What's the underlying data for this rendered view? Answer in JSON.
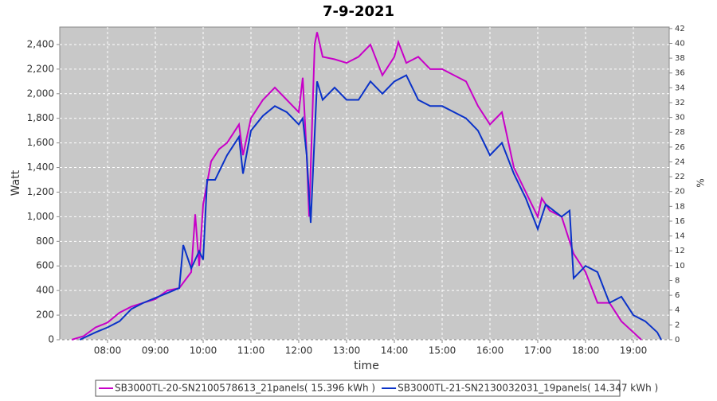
{
  "chart_data": {
    "type": "line",
    "title": "7-9-2021",
    "x_label": "time",
    "y_label": "Watt",
    "y2_label": "%",
    "xlim": [
      "07:00",
      "19:45"
    ],
    "xticks": [
      "08:00",
      "09:00",
      "10:00",
      "11:00",
      "12:00",
      "13:00",
      "14:00",
      "15:00",
      "16:00",
      "17:00",
      "18:00",
      "19:00"
    ],
    "ylim": [
      0,
      2542
    ],
    "yticks": [
      0,
      200,
      400,
      600,
      800,
      {
        "value": 1000,
        "label": "1,000"
      },
      {
        "value": 1200,
        "label": "1,200"
      },
      {
        "value": 1400,
        "label": "1,400"
      },
      {
        "value": 1600,
        "label": "1,600"
      },
      {
        "value": 1800,
        "label": "1,800"
      },
      {
        "value": 2000,
        "label": "2,000"
      },
      {
        "value": 2200,
        "label": "2,200"
      },
      {
        "value": 2400,
        "label": "2,400"
      }
    ],
    "y2lim": [
      0,
      42.2
    ],
    "y2ticks": [
      0,
      2,
      4,
      6,
      8,
      10,
      12,
      14,
      16,
      18,
      20,
      22,
      24,
      26,
      28,
      30,
      32,
      34,
      36,
      38,
      40,
      42
    ],
    "grid": true,
    "legend": "bottom",
    "series": [
      {
        "name": "SB3000TL-20-SN2100578613_21panels( 15.396 kWh )",
        "color": "#c800c8",
        "x": [
          "07:15",
          "07:30",
          "07:45",
          "08:00",
          "08:15",
          "08:30",
          "08:45",
          "09:00",
          "09:15",
          "09:30",
          "09:45",
          "09:50",
          "09:55",
          "10:00",
          "10:10",
          "10:20",
          "10:30",
          "10:40",
          "10:45",
          "10:50",
          "11:00",
          "11:15",
          "11:30",
          "11:45",
          "12:00",
          "12:05",
          "12:10",
          "12:13",
          "12:20",
          "12:23",
          "12:30",
          "12:45",
          "13:00",
          "13:15",
          "13:30",
          "13:45",
          "14:00",
          "14:05",
          "14:15",
          "14:30",
          "14:45",
          "15:00",
          "15:15",
          "15:30",
          "15:45",
          "16:00",
          "16:15",
          "16:30",
          "16:45",
          "17:00",
          "17:05",
          "17:15",
          "17:30",
          "17:45",
          "18:00",
          "18:15",
          "18:30",
          "18:45",
          "19:00",
          "19:10"
        ],
        "values": [
          0,
          30,
          100,
          140,
          220,
          270,
          300,
          330,
          400,
          420,
          550,
          1020,
          600,
          1100,
          1450,
          1550,
          1600,
          1700,
          1750,
          1500,
          1800,
          1950,
          2050,
          1950,
          1850,
          2130,
          1500,
          1000,
          2400,
          2500,
          2300,
          2280,
          2250,
          2300,
          2400,
          2150,
          2300,
          2420,
          2250,
          2300,
          2200,
          2200,
          2150,
          2100,
          1900,
          1750,
          1850,
          1400,
          1200,
          1000,
          1150,
          1050,
          1000,
          700,
          550,
          300,
          300,
          150,
          60,
          0
        ]
      },
      {
        "name": "SB3000TL-21-SN2130032031_19panels( 14.347 kWh )",
        "color": "#0a32c8",
        "x": [
          "07:25",
          "07:45",
          "08:00",
          "08:15",
          "08:30",
          "08:45",
          "09:00",
          "09:15",
          "09:30",
          "09:35",
          "09:45",
          "09:55",
          "10:00",
          "10:05",
          "10:15",
          "10:30",
          "10:45",
          "10:50",
          "11:00",
          "11:15",
          "11:30",
          "11:45",
          "12:00",
          "12:05",
          "12:10",
          "12:15",
          "12:23",
          "12:30",
          "12:45",
          "13:00",
          "13:15",
          "13:30",
          "13:45",
          "14:00",
          "14:15",
          "14:30",
          "14:45",
          "15:00",
          "15:15",
          "15:30",
          "15:45",
          "16:00",
          "16:15",
          "16:30",
          "16:45",
          "17:00",
          "17:10",
          "17:30",
          "17:40",
          "17:45",
          "18:00",
          "18:15",
          "18:30",
          "18:45",
          "19:00",
          "19:15",
          "19:30",
          "19:35"
        ],
        "values": [
          0,
          60,
          100,
          150,
          250,
          300,
          340,
          380,
          420,
          770,
          580,
          720,
          650,
          1300,
          1300,
          1500,
          1650,
          1350,
          1700,
          1820,
          1900,
          1850,
          1750,
          1800,
          1500,
          950,
          2100,
          1950,
          2050,
          1950,
          1950,
          2100,
          2000,
          2100,
          2150,
          1950,
          1900,
          1900,
          1850,
          1800,
          1700,
          1500,
          1600,
          1350,
          1150,
          900,
          1100,
          1000,
          1050,
          500,
          600,
          550,
          300,
          350,
          200,
          150,
          60,
          0
        ]
      }
    ]
  }
}
